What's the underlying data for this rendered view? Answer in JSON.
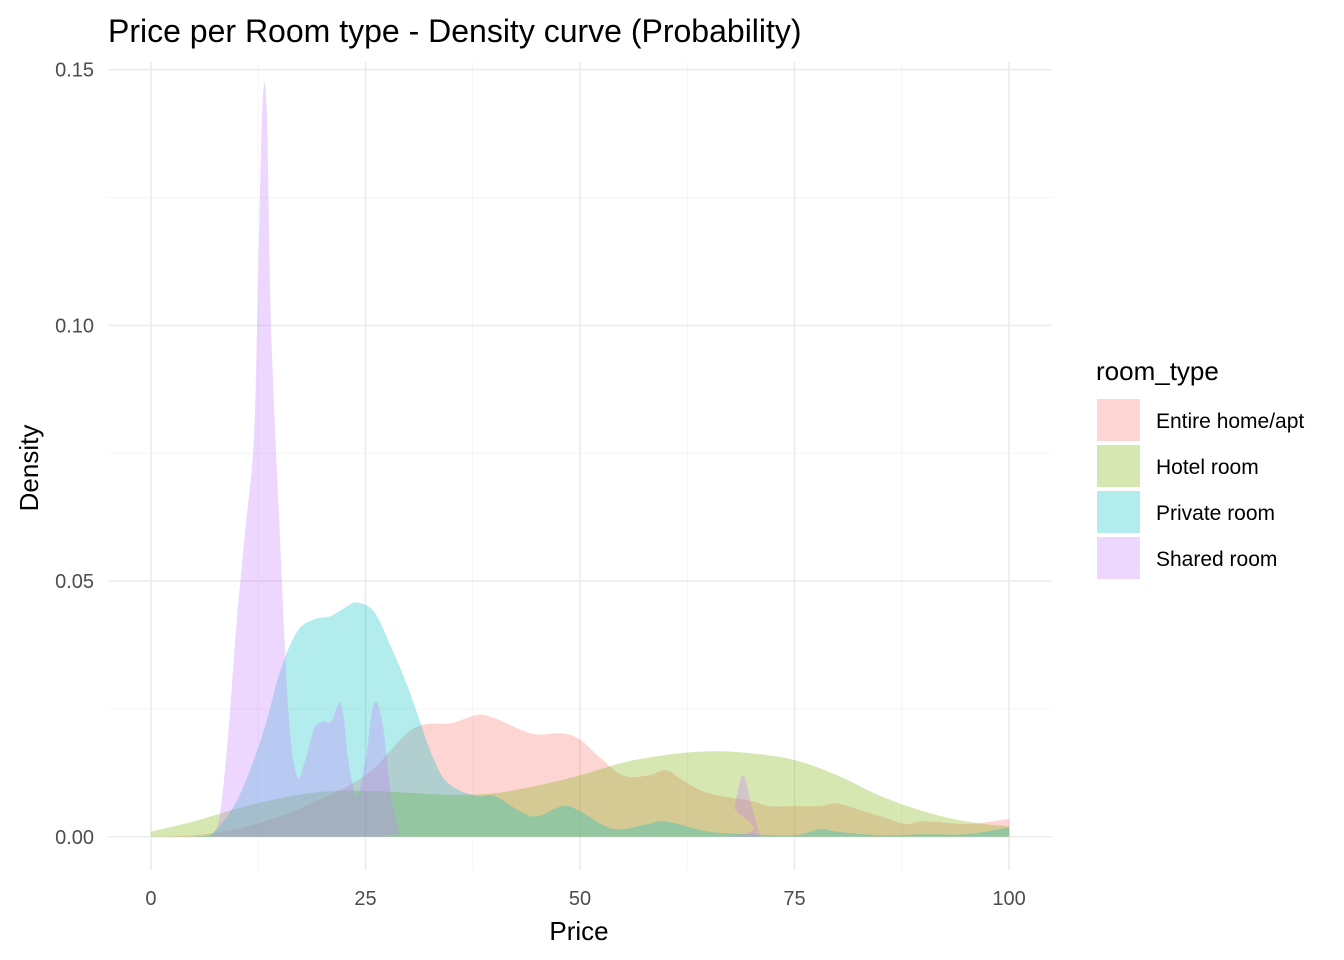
{
  "chart_data": {
    "type": "area",
    "title": "Price per Room type - Density curve (Probability)",
    "xlabel": "Price",
    "ylabel": "Density",
    "xlim": [
      -5,
      105
    ],
    "ylim": [
      -0.0065,
      0.1515
    ],
    "x_ticks": [
      0,
      25,
      50,
      75,
      100
    ],
    "x_tick_labels": [
      "0",
      "25",
      "50",
      "75",
      "100"
    ],
    "y_ticks": [
      0.0,
      0.05,
      0.1,
      0.15
    ],
    "y_tick_labels": [
      "0.00",
      "0.05",
      "0.10",
      "0.15"
    ],
    "grid": true,
    "legend": {
      "title": "room_type",
      "position": "right"
    },
    "series": [
      {
        "name": "Entire home/apt",
        "color": "#F8766D",
        "points": [
          [
            0,
            0.0
          ],
          [
            5,
            0.0003
          ],
          [
            10,
            0.0015
          ],
          [
            15,
            0.004
          ],
          [
            20,
            0.0075
          ],
          [
            25,
            0.012
          ],
          [
            28,
            0.017
          ],
          [
            30,
            0.0205
          ],
          [
            32,
            0.022
          ],
          [
            35,
            0.0222
          ],
          [
            38,
            0.0238
          ],
          [
            40,
            0.0232
          ],
          [
            43,
            0.021
          ],
          [
            45,
            0.02
          ],
          [
            48,
            0.0202
          ],
          [
            50,
            0.019
          ],
          [
            52,
            0.016
          ],
          [
            55,
            0.012
          ],
          [
            58,
            0.012
          ],
          [
            60,
            0.013
          ],
          [
            62,
            0.011
          ],
          [
            65,
            0.0085
          ],
          [
            70,
            0.007
          ],
          [
            72,
            0.006
          ],
          [
            75,
            0.006
          ],
          [
            78,
            0.006
          ],
          [
            80,
            0.0065
          ],
          [
            83,
            0.005
          ],
          [
            85,
            0.004
          ],
          [
            88,
            0.0025
          ],
          [
            90,
            0.003
          ],
          [
            95,
            0.0025
          ],
          [
            98,
            0.003
          ],
          [
            100,
            0.0035
          ]
        ]
      },
      {
        "name": "Hotel room",
        "color": "#7CAE00",
        "points": [
          [
            0,
            0.001
          ],
          [
            5,
            0.003
          ],
          [
            10,
            0.0055
          ],
          [
            15,
            0.0075
          ],
          [
            20,
            0.0088
          ],
          [
            25,
            0.009
          ],
          [
            30,
            0.0086
          ],
          [
            35,
            0.0082
          ],
          [
            40,
            0.0085
          ],
          [
            45,
            0.01
          ],
          [
            50,
            0.012
          ],
          [
            55,
            0.0145
          ],
          [
            60,
            0.016
          ],
          [
            65,
            0.0167
          ],
          [
            70,
            0.0163
          ],
          [
            75,
            0.015
          ],
          [
            80,
            0.012
          ],
          [
            85,
            0.008
          ],
          [
            90,
            0.005
          ],
          [
            95,
            0.003
          ],
          [
            100,
            0.002
          ]
        ]
      },
      {
        "name": "Private room",
        "color": "#00BFC4",
        "points": [
          [
            5,
            0.0
          ],
          [
            7,
            0.0005
          ],
          [
            10,
            0.007
          ],
          [
            13,
            0.02
          ],
          [
            15,
            0.032
          ],
          [
            17,
            0.04
          ],
          [
            19,
            0.0425
          ],
          [
            21,
            0.0432
          ],
          [
            23,
            0.0452
          ],
          [
            24,
            0.0458
          ],
          [
            26,
            0.044
          ],
          [
            28,
            0.037
          ],
          [
            30,
            0.029
          ],
          [
            33,
            0.015
          ],
          [
            35,
            0.01
          ],
          [
            38,
            0.008
          ],
          [
            40,
            0.008
          ],
          [
            43,
            0.005
          ],
          [
            45,
            0.004
          ],
          [
            48,
            0.006
          ],
          [
            50,
            0.005
          ],
          [
            53,
            0.002
          ],
          [
            55,
            0.0015
          ],
          [
            58,
            0.0025
          ],
          [
            60,
            0.003
          ],
          [
            65,
            0.001
          ],
          [
            70,
            0.0005
          ],
          [
            75,
            0.0003
          ],
          [
            78,
            0.0015
          ],
          [
            80,
            0.001
          ],
          [
            85,
            0.0003
          ],
          [
            90,
            0.0005
          ],
          [
            95,
            0.0005
          ],
          [
            100,
            0.0018
          ]
        ]
      },
      {
        "name": "Shared room",
        "color": "#C77CFF",
        "points": [
          [
            7,
            0.0
          ],
          [
            8,
            0.004
          ],
          [
            9,
            0.02
          ],
          [
            10,
            0.042
          ],
          [
            11,
            0.06
          ],
          [
            12,
            0.078
          ],
          [
            12.5,
            0.11
          ],
          [
            13,
            0.143
          ],
          [
            13.5,
            0.142
          ],
          [
            14,
            0.1
          ],
          [
            15,
            0.06
          ],
          [
            16,
            0.025
          ],
          [
            17,
            0.012
          ],
          [
            18,
            0.015
          ],
          [
            19,
            0.021
          ],
          [
            20,
            0.0225
          ],
          [
            21,
            0.0225
          ],
          [
            22,
            0.0262
          ],
          [
            22.5,
            0.023
          ],
          [
            23,
            0.015
          ],
          [
            24,
            0.008
          ],
          [
            25,
            0.015
          ],
          [
            26,
            0.026
          ],
          [
            27,
            0.022
          ],
          [
            28,
            0.008
          ],
          [
            29,
            0.001
          ],
          [
            30,
            0.0
          ],
          [
            67,
            0.0
          ],
          [
            68,
            0.006
          ],
          [
            69,
            0.012
          ],
          [
            70,
            0.006
          ],
          [
            71,
            0.0
          ]
        ]
      }
    ]
  }
}
